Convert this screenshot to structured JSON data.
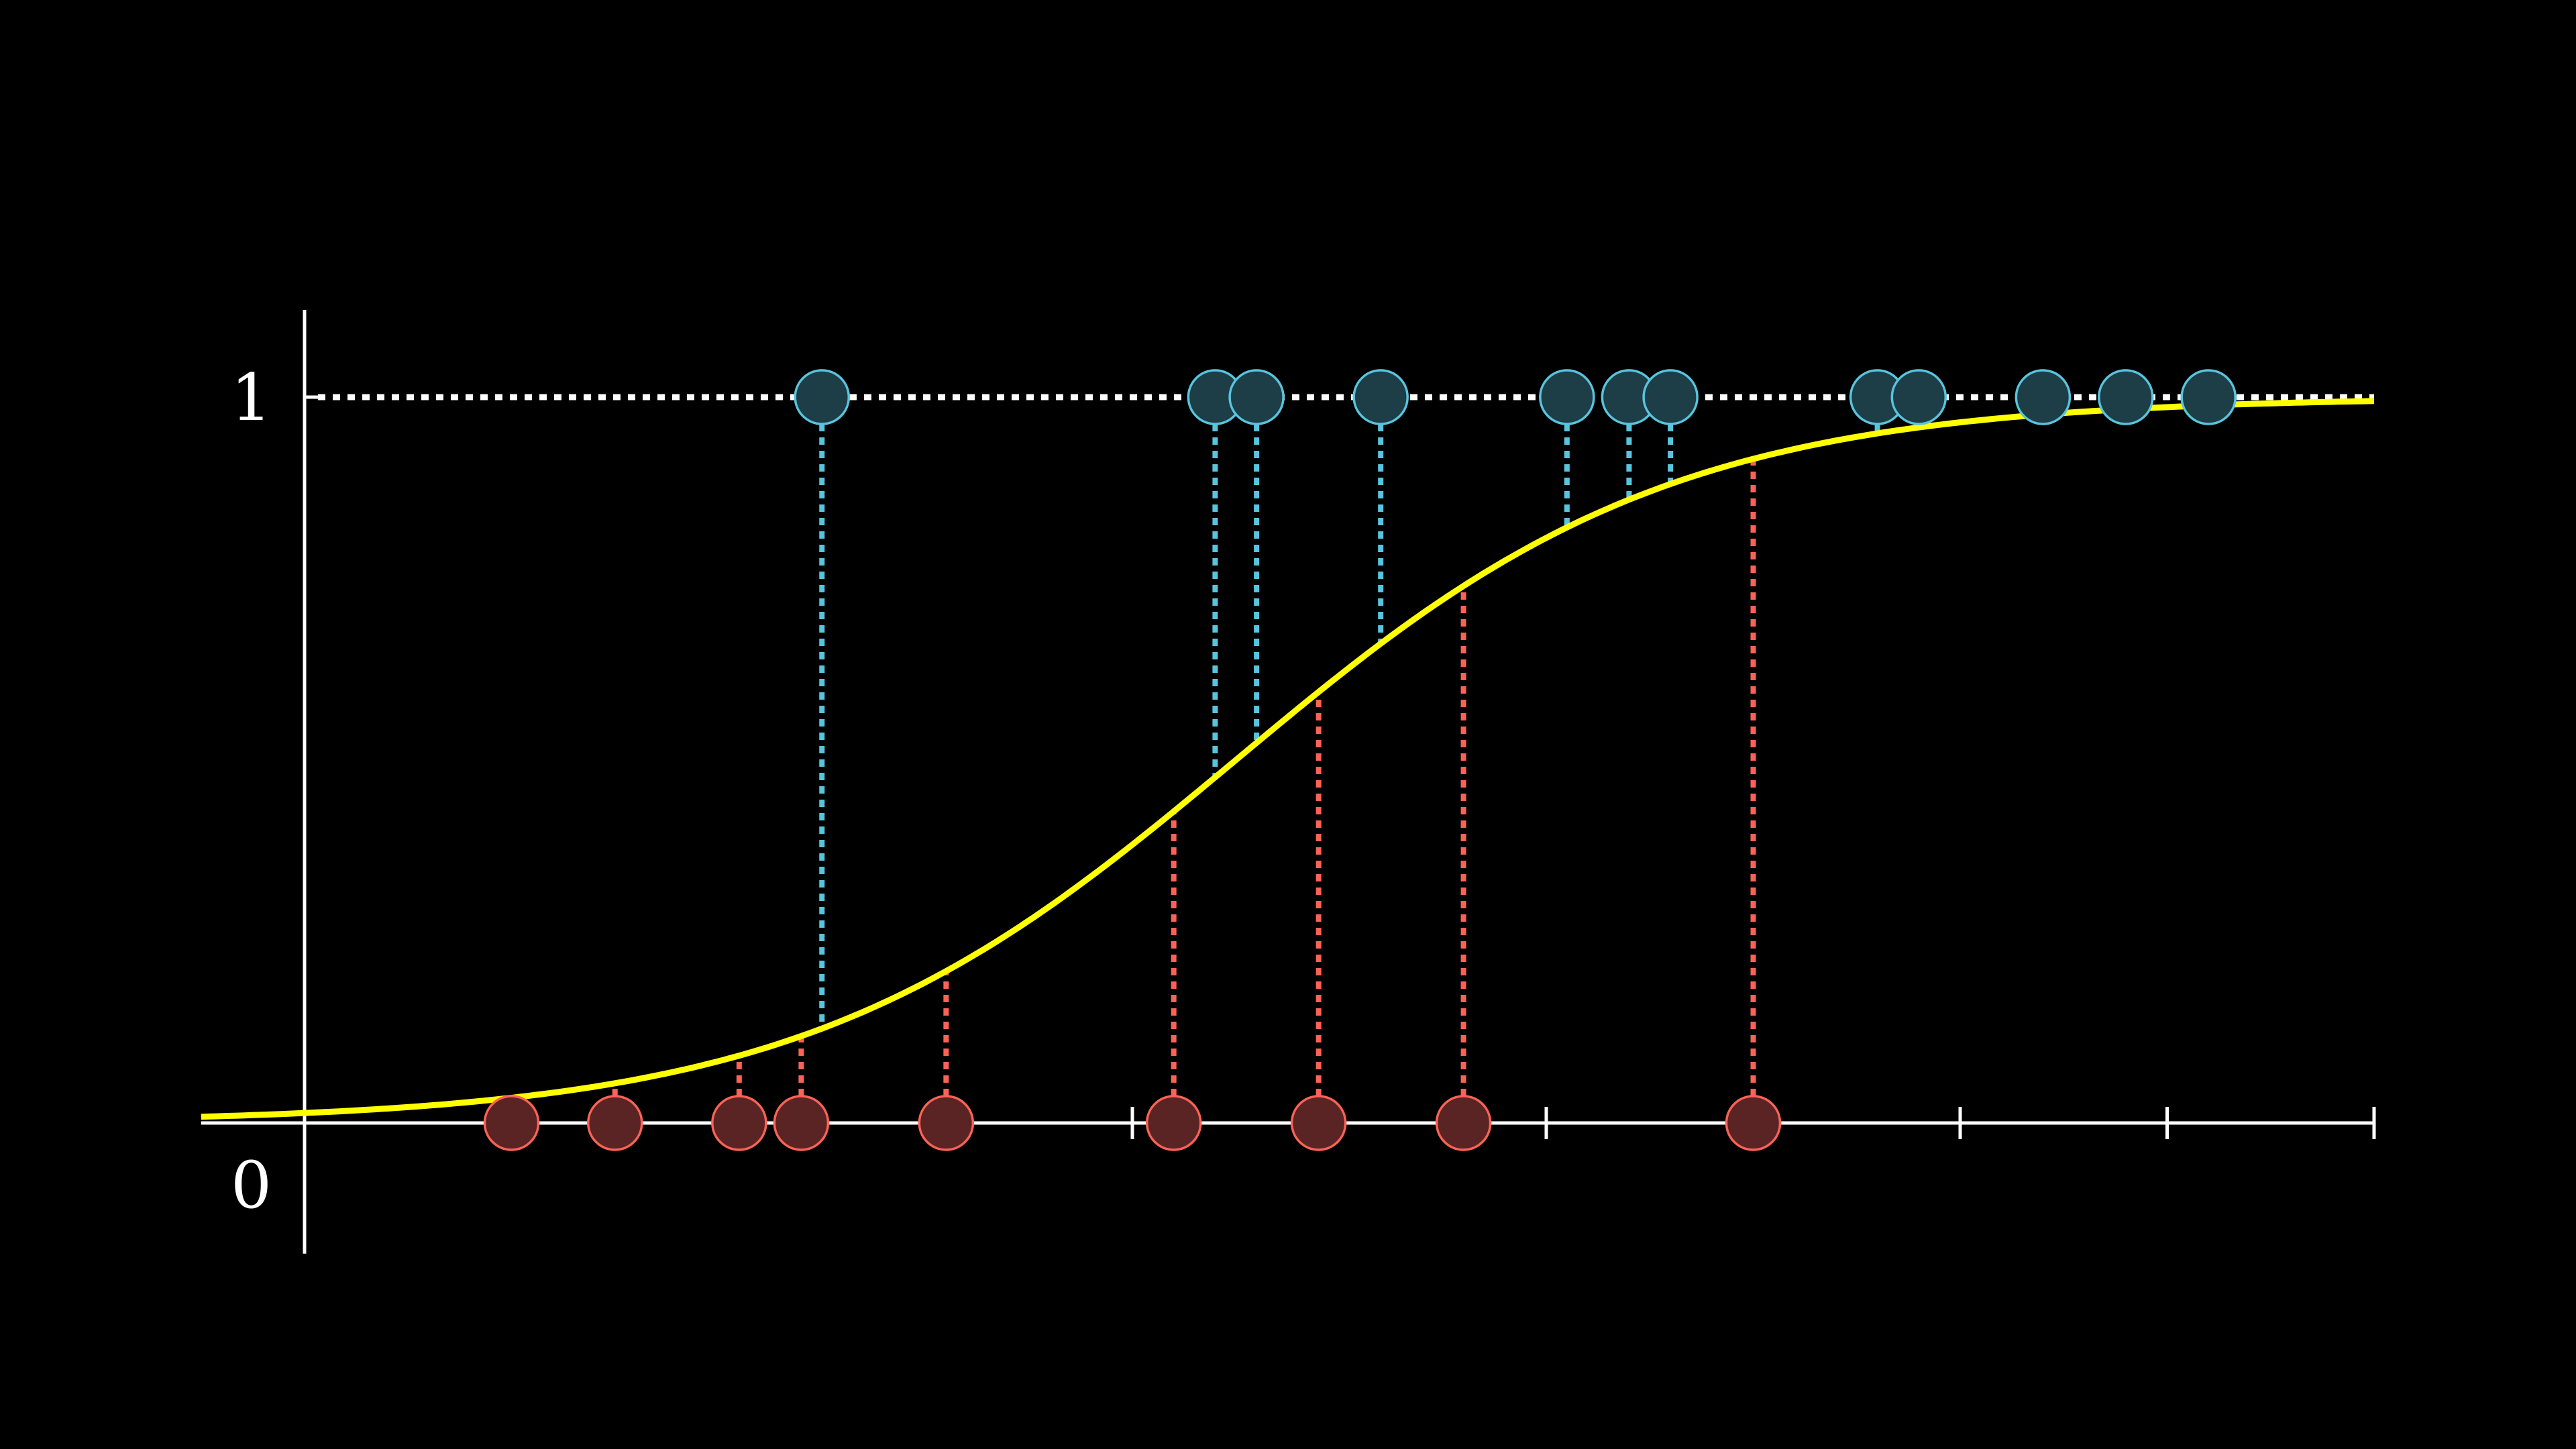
{
  "chart_data": {
    "type": "scatter",
    "title": "",
    "xlabel": "",
    "ylabel": "",
    "xlim": [
      -0.5,
      10.0
    ],
    "ylim": [
      -0.18,
      1.12
    ],
    "x_ticks": [
      0,
      1,
      2,
      3,
      4,
      5,
      6,
      7,
      8,
      9,
      10
    ],
    "y_tick_labels": [
      {
        "value": 1,
        "label": "1"
      },
      {
        "value": 0,
        "label": "0"
      }
    ],
    "reference_line": {
      "y": 1,
      "style": "dotted"
    },
    "grid": false,
    "legend": "none",
    "curve": {
      "name": "",
      "type": "logistic",
      "midpoint": 4.5,
      "steepness": 0.95,
      "color": "#ffff00"
    },
    "series": [
      {
        "label_value": 0,
        "color": "#fc6255",
        "x": [
          1.0,
          1.5,
          2.1,
          2.4,
          3.1,
          4.2,
          4.9,
          5.6,
          7.0
        ]
      },
      {
        "label_value": 1,
        "color": "#58c4dd",
        "x": [
          2.5,
          4.4,
          4.6,
          5.2,
          6.1,
          6.4,
          6.6,
          7.6,
          7.8,
          8.4,
          8.8,
          9.2
        ]
      }
    ]
  }
}
